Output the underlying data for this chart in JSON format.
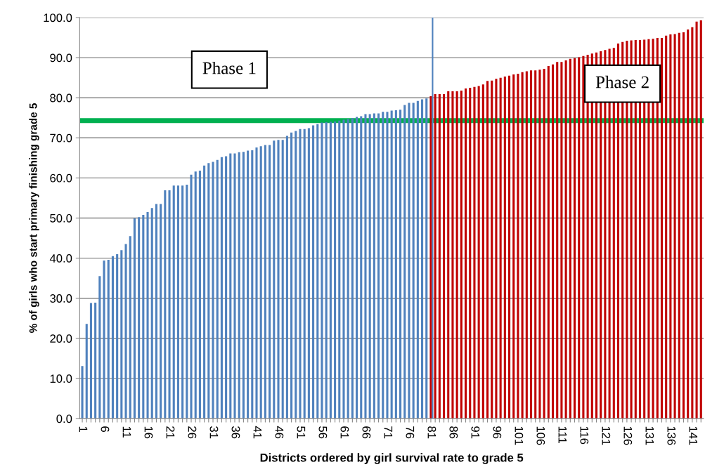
{
  "chart_data": {
    "type": "bar",
    "xlabel": "Districts ordered by girl survival rate to grade 5",
    "ylabel": "% of girls who start primary finishing grade 5",
    "categories": [
      "1",
      null,
      null,
      null,
      null,
      "6",
      null,
      null,
      null,
      null,
      "11",
      null,
      null,
      null,
      null,
      "16",
      null,
      null,
      null,
      null,
      "21",
      null,
      null,
      null,
      null,
      "26",
      null,
      null,
      null,
      null,
      "31",
      null,
      null,
      null,
      null,
      "36",
      null,
      null,
      null,
      null,
      "41",
      null,
      null,
      null,
      null,
      "46",
      null,
      null,
      null,
      null,
      "51",
      null,
      null,
      null,
      null,
      "56",
      null,
      null,
      null,
      null,
      "61",
      null,
      null,
      null,
      null,
      "66",
      null,
      null,
      null,
      null,
      "71",
      null,
      null,
      null,
      null,
      "76",
      null,
      null,
      null,
      null,
      "81",
      null,
      null,
      null,
      null,
      "86",
      null,
      null,
      null,
      null,
      "91",
      null,
      null,
      null,
      null,
      "96",
      null,
      null,
      null,
      null,
      "101",
      null,
      null,
      null,
      null,
      "106",
      null,
      null,
      null,
      null,
      "111",
      null,
      null,
      null,
      null,
      "116",
      null,
      null,
      null,
      null,
      "121",
      null,
      null,
      null,
      null,
      "126",
      null,
      null,
      null,
      null,
      "131",
      null,
      null,
      null,
      null,
      "136",
      null,
      null,
      null,
      null,
      "141",
      null,
      null
    ],
    "values": [
      13.1,
      23.6,
      28.8,
      28.9,
      35.5,
      39.4,
      39.6,
      40.5,
      41.0,
      42.0,
      43.5,
      45.5,
      49.9,
      50.2,
      50.8,
      51.5,
      52.5,
      53.5,
      53.5,
      56.9,
      56.9,
      58.1,
      58.1,
      58.1,
      58.3,
      60.8,
      61.6,
      61.8,
      63.1,
      63.7,
      64.0,
      64.5,
      65.2,
      65.4,
      66.1,
      66.1,
      66.4,
      66.5,
      66.8,
      66.9,
      67.6,
      67.9,
      68.2,
      68.2,
      69.3,
      69.5,
      69.5,
      70.5,
      71.3,
      71.7,
      72.2,
      72.2,
      72.4,
      73.1,
      73.4,
      73.8,
      73.9,
      74.0,
      74.1,
      74.3,
      74.5,
      74.7,
      74.9,
      75.2,
      75.4,
      75.9,
      75.9,
      76.1,
      76.1,
      76.5,
      76.5,
      76.8,
      76.9,
      77.0,
      78.2,
      78.7,
      78.7,
      79.2,
      79.6,
      79.8,
      80.4,
      80.9,
      80.9,
      80.9,
      81.6,
      81.6,
      81.6,
      81.8,
      82.3,
      82.5,
      82.7,
      82.9,
      83.3,
      84.2,
      84.3,
      84.7,
      85.0,
      85.3,
      85.5,
      85.8,
      86.0,
      86.4,
      86.6,
      86.8,
      86.8,
      87.0,
      87.2,
      87.9,
      88.3,
      88.9,
      88.9,
      89.3,
      89.7,
      89.9,
      90.1,
      90.4,
      90.7,
      91.0,
      91.3,
      91.6,
      91.9,
      92.2,
      92.4,
      93.5,
      93.9,
      94.2,
      94.3,
      94.4,
      94.4,
      94.5,
      94.6,
      94.7,
      94.9,
      94.9,
      95.5,
      95.8,
      95.9,
      96.2,
      96.3,
      97.0,
      97.6,
      99.0,
      99.3
    ],
    "colors": [
      "#4f81bd",
      "#4f81bd",
      "#4f81bd",
      "#4f81bd",
      "#4f81bd",
      "#4f81bd",
      "#4f81bd",
      "#4f81bd",
      "#4f81bd",
      "#4f81bd",
      "#4f81bd",
      "#4f81bd",
      "#4f81bd",
      "#4f81bd",
      "#4f81bd",
      "#4f81bd",
      "#4f81bd",
      "#4f81bd",
      "#4f81bd",
      "#4f81bd",
      "#4f81bd",
      "#4f81bd",
      "#4f81bd",
      "#4f81bd",
      "#4f81bd",
      "#4f81bd",
      "#4f81bd",
      "#4f81bd",
      "#4f81bd",
      "#4f81bd",
      "#4f81bd",
      "#4f81bd",
      "#4f81bd",
      "#4f81bd",
      "#4f81bd",
      "#4f81bd",
      "#4f81bd",
      "#4f81bd",
      "#4f81bd",
      "#4f81bd",
      "#4f81bd",
      "#4f81bd",
      "#4f81bd",
      "#4f81bd",
      "#4f81bd",
      "#4f81bd",
      "#4f81bd",
      "#4f81bd",
      "#4f81bd",
      "#4f81bd",
      "#4f81bd",
      "#4f81bd",
      "#4f81bd",
      "#4f81bd",
      "#4f81bd",
      "#4f81bd",
      "#4f81bd",
      "#4f81bd",
      "#4f81bd",
      "#4f81bd",
      "#4f81bd",
      "#4f81bd",
      "#4f81bd",
      "#4f81bd",
      "#4f81bd",
      "#4f81bd",
      "#4f81bd",
      "#4f81bd",
      "#4f81bd",
      "#4f81bd",
      "#4f81bd",
      "#4f81bd",
      "#4f81bd",
      "#4f81bd",
      "#4f81bd",
      "#4f81bd",
      "#4f81bd",
      "#4f81bd",
      "#4f81bd",
      "#4f81bd",
      "#c00000",
      "#c00000",
      "#c00000",
      "#c00000",
      "#c00000",
      "#c00000",
      "#c00000",
      "#c00000",
      "#c00000",
      "#c00000",
      "#c00000",
      "#c00000",
      "#c00000",
      "#c00000",
      "#c00000",
      "#c00000",
      "#c00000",
      "#c00000",
      "#c00000",
      "#c00000",
      "#c00000",
      "#c00000",
      "#c00000",
      "#c00000",
      "#c00000",
      "#c00000",
      "#c00000",
      "#c00000",
      "#c00000",
      "#c00000",
      "#c00000",
      "#c00000",
      "#c00000",
      "#c00000",
      "#c00000",
      "#c00000",
      "#c00000",
      "#c00000",
      "#c00000",
      "#c00000",
      "#c00000",
      "#c00000",
      "#c00000",
      "#c00000",
      "#c00000",
      "#c00000",
      "#c00000",
      "#c00000",
      "#c00000",
      "#c00000",
      "#c00000",
      "#c00000",
      "#c00000",
      "#c00000",
      "#c00000",
      "#c00000",
      "#c00000",
      "#c00000",
      "#c00000",
      "#c00000",
      "#c00000",
      "#c00000",
      "#c00000"
    ],
    "ylim": [
      0,
      100
    ],
    "yticks": [
      {
        "value": 0,
        "label": "0.0"
      },
      {
        "value": 10,
        "label": "10.0"
      },
      {
        "value": 20,
        "label": "20.0"
      },
      {
        "value": 30,
        "label": "30.0"
      },
      {
        "value": 40,
        "label": "40.0"
      },
      {
        "value": 50,
        "label": "50.0"
      },
      {
        "value": 60,
        "label": "60.0"
      },
      {
        "value": 70,
        "label": "70.0"
      },
      {
        "value": 80,
        "label": "80.0"
      },
      {
        "value": 90,
        "label": "90.0"
      },
      {
        "value": 100,
        "label": "100.0"
      }
    ],
    "grid": "y",
    "ref_lines": [
      {
        "axis": "y",
        "value": 74.3,
        "color": "#00b050"
      },
      {
        "axis": "x",
        "value": "81",
        "color": "#4f81bd"
      }
    ],
    "annotations": [
      "Phase 1",
      "Phase 2"
    ]
  }
}
